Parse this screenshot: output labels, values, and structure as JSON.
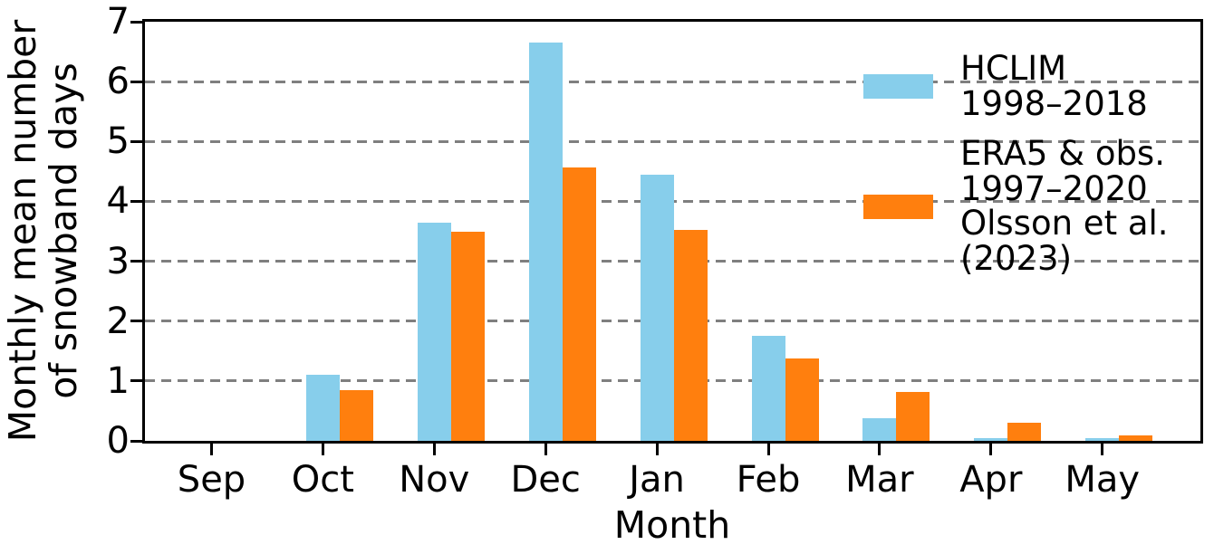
{
  "chart_data": {
    "type": "bar",
    "title": "",
    "xlabel": "Month",
    "ylabel": "Monthly mean number\nof snowband days",
    "categories": [
      "Sep",
      "Oct",
      "Nov",
      "Dec",
      "Jan",
      "Feb",
      "Mar",
      "Apr",
      "May"
    ],
    "series": [
      {
        "name": "HCLIM\n1998–2018",
        "color": "#87CEEB",
        "values": [
          0,
          1.1,
          3.65,
          6.65,
          4.45,
          1.75,
          0.38,
          0.05,
          0.05
        ]
      },
      {
        "name": "ERA5 & obs.\n1997–2020\nOlsson et al.\n(2023)",
        "color": "#FF7F0E",
        "values": [
          0,
          0.85,
          3.5,
          4.57,
          3.53,
          1.38,
          0.81,
          0.3,
          0.09
        ]
      }
    ],
    "ylim": [
      0,
      7
    ],
    "yticks": [
      0,
      1,
      2,
      3,
      4,
      5,
      6,
      7
    ],
    "gridlines": {
      "y": [
        1,
        2,
        3,
        4,
        5,
        6
      ],
      "style": "dashed",
      "color": "#7f7f7f"
    },
    "legend_position": "upper right",
    "axis_color": "#000000",
    "background_color": "#ffffff"
  }
}
